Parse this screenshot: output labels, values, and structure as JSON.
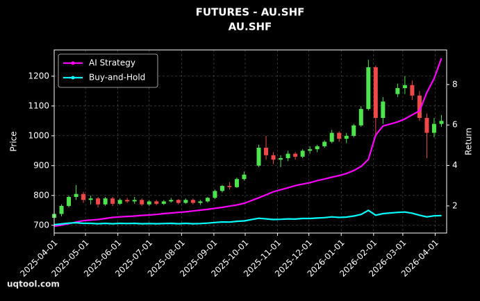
{
  "chart_data": {
    "type": "candlestick",
    "title": "FUTURES - AU.SHF",
    "subtitle": "AU.SHF",
    "y_label": "Price",
    "y2_label": "Return",
    "watermark": "uqtool.com",
    "up_color": "#4ee44e",
    "down_color": "#f04848",
    "grid": true,
    "legend": "upper left",
    "xlim": [
      "2025-04-01",
      "2026-04-12"
    ],
    "xticks": [
      "2025-04-01",
      "2025-05-01",
      "2025-06-01",
      "2025-07-01",
      "2025-08-01",
      "2025-09-01",
      "2025-10-01",
      "2025-11-01",
      "2025-12-01",
      "2026-01-01",
      "2026-02-01",
      "2026-03-01",
      "2026-04-01"
    ],
    "ylim": [
      674,
      1288
    ],
    "yticks": [
      700,
      800,
      900,
      1000,
      1100,
      1200
    ],
    "y2lim": [
      0.66,
      9.71
    ],
    "y2ticks": [
      2,
      4,
      6,
      8
    ],
    "x": [
      "2025-04-01",
      "2025-04-08",
      "2025-04-15",
      "2025-04-22",
      "2025-04-29",
      "2025-05-06",
      "2025-05-13",
      "2025-05-20",
      "2025-05-27",
      "2025-06-03",
      "2025-06-10",
      "2025-06-17",
      "2025-06-24",
      "2025-07-01",
      "2025-07-08",
      "2025-07-15",
      "2025-07-22",
      "2025-07-29",
      "2025-08-05",
      "2025-08-12",
      "2025-08-19",
      "2025-08-26",
      "2025-09-02",
      "2025-09-09",
      "2025-09-16",
      "2025-09-23",
      "2025-09-30",
      "2025-10-14",
      "2025-10-21",
      "2025-10-28",
      "2025-11-04",
      "2025-11-11",
      "2025-11-18",
      "2025-11-25",
      "2025-12-02",
      "2025-12-09",
      "2025-12-16",
      "2025-12-23",
      "2025-12-30",
      "2026-01-06",
      "2026-01-13",
      "2026-01-20",
      "2026-01-27",
      "2026-02-03",
      "2026-02-10",
      "2026-02-24",
      "2026-03-03",
      "2026-03-10",
      "2026-03-17",
      "2026-03-24",
      "2026-03-31",
      "2026-04-07"
    ],
    "open": [
      725,
      738,
      765,
      795,
      805,
      785,
      790,
      770,
      790,
      772,
      785,
      780,
      785,
      770,
      780,
      772,
      780,
      785,
      775,
      785,
      775,
      780,
      792,
      815,
      832,
      828,
      855,
      900,
      960,
      935,
      920,
      925,
      940,
      930,
      950,
      955,
      965,
      980,
      1010,
      990,
      1000,
      1035,
      1090,
      1230,
      1060,
      1140,
      1160,
      1170,
      1135,
      1060,
      1010,
      1040
    ],
    "high": [
      742,
      770,
      800,
      835,
      812,
      800,
      795,
      795,
      795,
      790,
      792,
      795,
      790,
      785,
      785,
      785,
      792,
      788,
      790,
      790,
      785,
      795,
      820,
      835,
      845,
      860,
      880,
      970,
      1000,
      945,
      935,
      950,
      945,
      955,
      965,
      970,
      985,
      1020,
      1015,
      1010,
      1040,
      1100,
      1255,
      1235,
      1130,
      1175,
      1200,
      1185,
      1150,
      1075,
      1060,
      1070
    ],
    "low": [
      720,
      730,
      760,
      785,
      775,
      770,
      760,
      765,
      765,
      768,
      775,
      772,
      765,
      765,
      768,
      768,
      776,
      770,
      772,
      770,
      768,
      776,
      788,
      810,
      820,
      825,
      850,
      895,
      920,
      905,
      895,
      915,
      920,
      925,
      940,
      945,
      960,
      975,
      980,
      975,
      995,
      1030,
      1085,
      1005,
      1040,
      1130,
      1140,
      1120,
      1050,
      925,
      995,
      1030
    ],
    "close": [
      738,
      765,
      795,
      805,
      785,
      790,
      770,
      790,
      772,
      785,
      780,
      785,
      770,
      780,
      772,
      780,
      785,
      775,
      785,
      775,
      780,
      792,
      815,
      832,
      828,
      855,
      870,
      960,
      935,
      920,
      925,
      940,
      930,
      950,
      955,
      965,
      980,
      1010,
      990,
      1000,
      1035,
      1090,
      1230,
      1060,
      1115,
      1160,
      1170,
      1135,
      1060,
      1010,
      1040,
      1050
    ],
    "series": [
      {
        "name": "AI Strategy",
        "color": "#ff00ff",
        "axis": "y2",
        "values": [
          1.0,
          1.05,
          1.12,
          1.2,
          1.27,
          1.3,
          1.33,
          1.38,
          1.43,
          1.46,
          1.48,
          1.5,
          1.53,
          1.55,
          1.58,
          1.62,
          1.65,
          1.68,
          1.71,
          1.75,
          1.79,
          1.83,
          1.88,
          1.93,
          1.99,
          2.05,
          2.13,
          2.4,
          2.55,
          2.7,
          2.8,
          2.9,
          3.0,
          3.08,
          3.15,
          3.25,
          3.33,
          3.42,
          3.5,
          3.6,
          3.75,
          3.95,
          4.3,
          5.5,
          5.95,
          6.15,
          6.3,
          6.5,
          6.7,
          7.6,
          8.3,
          9.3
        ]
      },
      {
        "name": "Buy-and-Hold",
        "color": "#00ffff",
        "axis": "y2",
        "values": [
          1.07,
          1.11,
          1.15,
          1.17,
          1.14,
          1.14,
          1.12,
          1.14,
          1.12,
          1.14,
          1.13,
          1.14,
          1.12,
          1.13,
          1.12,
          1.13,
          1.14,
          1.12,
          1.14,
          1.12,
          1.13,
          1.15,
          1.18,
          1.21,
          1.2,
          1.24,
          1.26,
          1.39,
          1.36,
          1.33,
          1.34,
          1.36,
          1.35,
          1.38,
          1.38,
          1.4,
          1.42,
          1.46,
          1.43,
          1.45,
          1.5,
          1.58,
          1.78,
          1.54,
          1.62,
          1.68,
          1.7,
          1.64,
          1.54,
          1.46,
          1.51,
          1.52
        ]
      }
    ]
  }
}
